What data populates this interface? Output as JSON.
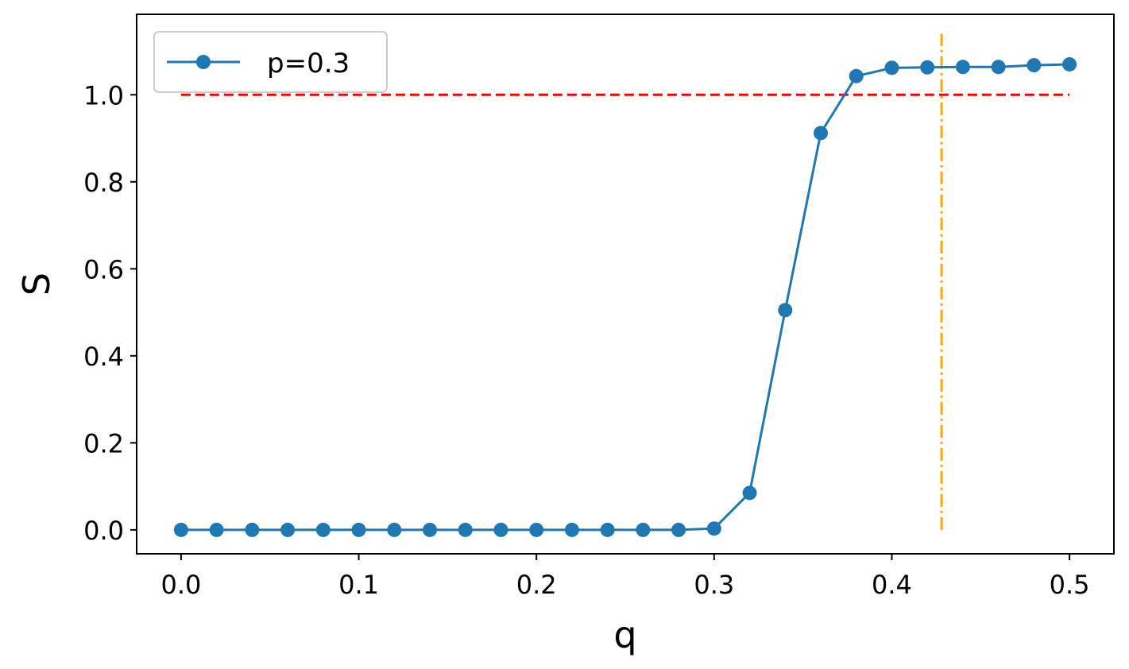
{
  "chart_data": {
    "type": "line",
    "title": "",
    "xlabel": "q",
    "ylabel": "S",
    "xlim": [
      -0.025,
      0.525
    ],
    "ylim": [
      -0.055,
      1.185
    ],
    "xticks": [
      0.0,
      0.1,
      0.2,
      0.3,
      0.4,
      0.5
    ],
    "xtick_labels": [
      "0.0",
      "0.1",
      "0.2",
      "0.3",
      "0.4",
      "0.5"
    ],
    "yticks": [
      0.0,
      0.2,
      0.4,
      0.6,
      0.8,
      1.0
    ],
    "ytick_labels": [
      "0.0",
      "0.2",
      "0.4",
      "0.6",
      "0.8",
      "1.0"
    ],
    "grid": false,
    "legend_position": "top-left",
    "series": [
      {
        "name": "p=0.3",
        "color": "#1f77b4",
        "marker": "circle",
        "x": [
          0.0,
          0.02,
          0.04,
          0.06,
          0.08,
          0.1,
          0.12,
          0.14,
          0.16,
          0.18,
          0.2,
          0.22,
          0.24,
          0.26,
          0.28,
          0.3,
          0.32,
          0.34,
          0.36,
          0.38,
          0.4,
          0.42,
          0.44,
          0.46,
          0.48,
          0.5
        ],
        "y": [
          0.0,
          0.0,
          0.0,
          0.0,
          0.0,
          0.0,
          0.0,
          0.0,
          0.0,
          0.0,
          0.0,
          0.0,
          0.0,
          0.0,
          0.0,
          0.003,
          0.085,
          0.505,
          0.912,
          1.043,
          1.062,
          1.063,
          1.064,
          1.064,
          1.068,
          1.07
        ]
      }
    ],
    "reference_lines": [
      {
        "orientation": "horizontal",
        "value": 1.0,
        "from": 0.0,
        "to": 0.5,
        "color": "#ff0000",
        "style": "dashed"
      },
      {
        "orientation": "vertical",
        "value": 0.428,
        "from": 0.0,
        "to": 1.14,
        "color": "#ffa500",
        "style": "dashdot"
      }
    ]
  }
}
